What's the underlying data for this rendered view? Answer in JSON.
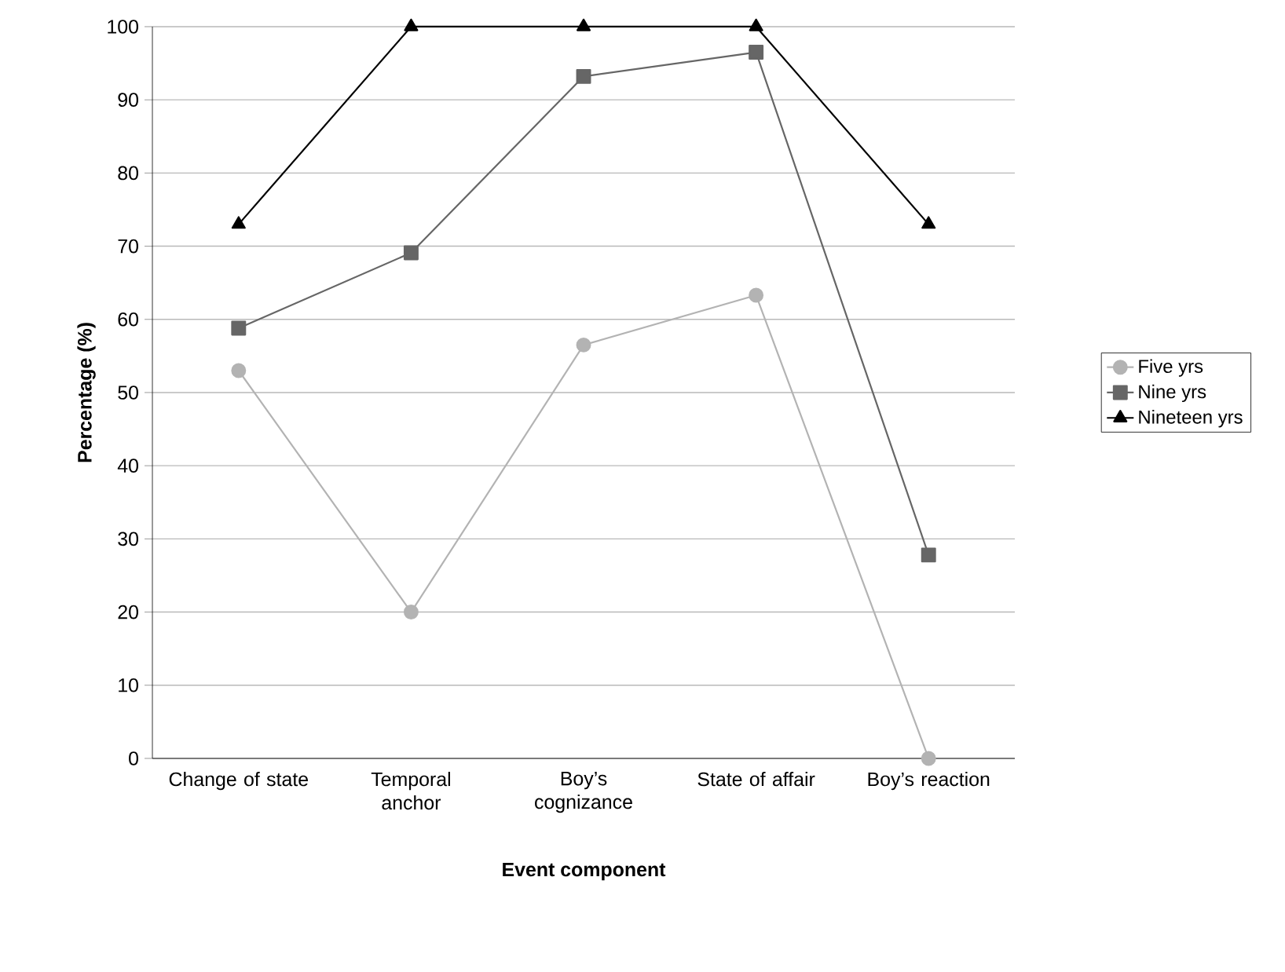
{
  "chart_data": {
    "type": "line",
    "xlabel": "Event component",
    "ylabel": "Percentage (%)",
    "categories": [
      "Change of state",
      "Temporal anchor",
      "Boy’s cognizance",
      "State of affair",
      "Boy’s reaction"
    ],
    "series": [
      {
        "name": "Five yrs",
        "color": "#b3b3b3",
        "marker": "circle",
        "values": [
          53,
          20,
          56.5,
          63.3,
          0
        ]
      },
      {
        "name": "Nine yrs",
        "color": "#666666",
        "marker": "square",
        "values": [
          58.8,
          69.1,
          93.2,
          96.5,
          27.8
        ]
      },
      {
        "name": "Nineteen yrs",
        "color": "#000000",
        "marker": "triangle",
        "values": [
          73,
          100,
          100,
          100,
          73
        ]
      }
    ],
    "ylim": [
      0,
      100
    ],
    "yticks": [
      0,
      10,
      20,
      30,
      40,
      50,
      60,
      70,
      80,
      90,
      100
    ],
    "grid": "y",
    "legend": "right"
  }
}
